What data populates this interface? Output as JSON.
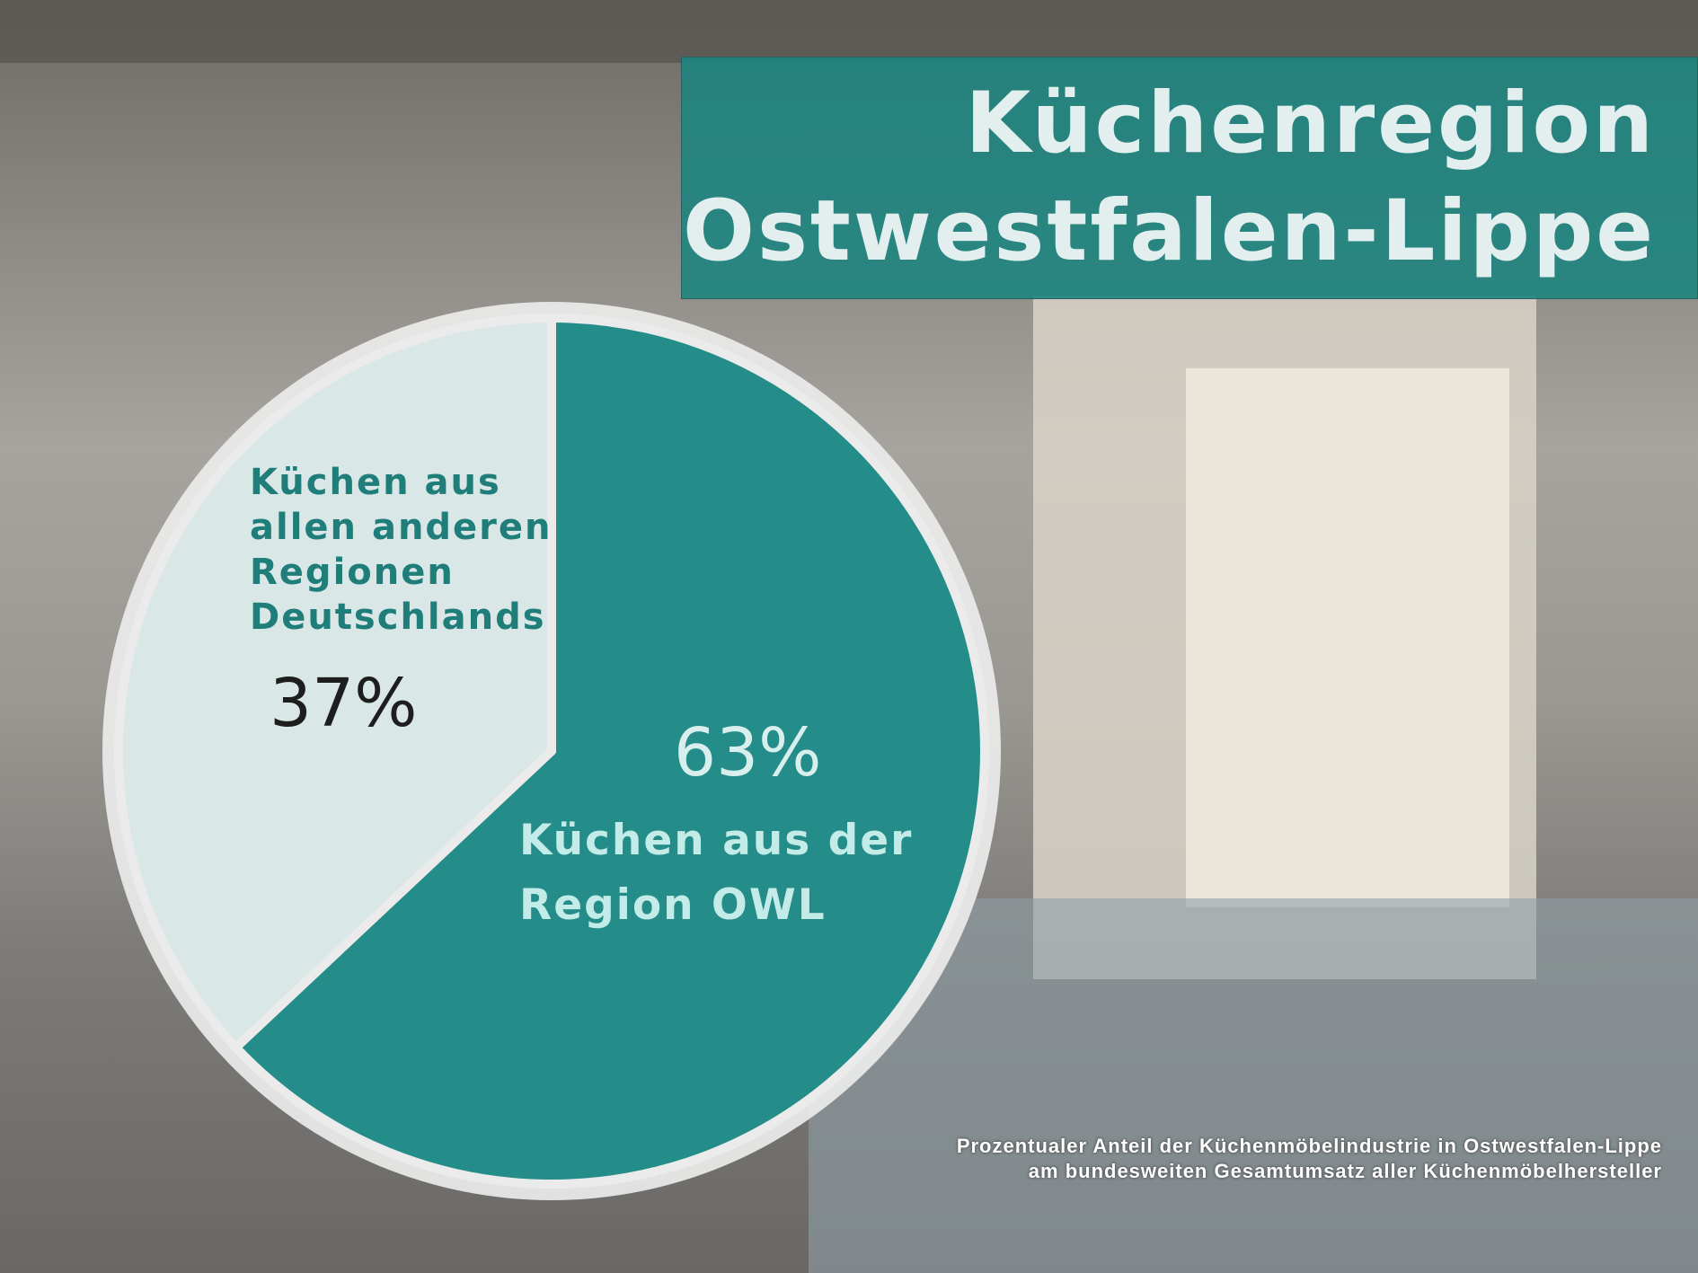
{
  "chart_data": {
    "type": "pie",
    "title": [
      "Küchenregion",
      "Ostwestfalen-Lippe"
    ],
    "caption": [
      "Prozentualer Anteil der Küchenmöbelindustrie in Ostwestfalen-Lippe",
      "am bundesweiten Gesamtumsatz aller Küchenmöbelhersteller"
    ],
    "categories": [
      "Küchen aus der Region OWL",
      "Küchen aus allen anderen Regionen Deutschlands"
    ],
    "values": [
      63,
      37
    ],
    "value_labels": [
      "63%",
      "37%"
    ],
    "colors": [
      "#1a8885",
      "#d9e8e8"
    ]
  }
}
